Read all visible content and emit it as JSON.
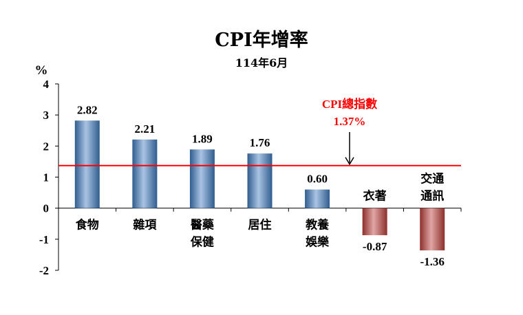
{
  "chart_data": {
    "type": "bar",
    "title": "CPI年增率",
    "subtitle": "114年6月",
    "ylabel": "%",
    "ylim": [
      -2,
      4
    ],
    "yticks": [
      "-2",
      "-1",
      "0",
      "1",
      "2",
      "3",
      "4"
    ],
    "categories": [
      [
        "食物"
      ],
      [
        "雜項"
      ],
      [
        "醫藥",
        "保健"
      ],
      [
        "居住"
      ],
      [
        "教養",
        "娛樂"
      ],
      [
        "衣著"
      ],
      [
        "交通",
        "通訊"
      ]
    ],
    "values": [
      2.82,
      2.21,
      1.89,
      1.76,
      0.6,
      -0.87,
      -1.36
    ],
    "data_labels": [
      "2.82",
      "2.21",
      "1.89",
      "1.76",
      "0.60",
      "-0.87",
      "-1.36"
    ],
    "reference_line": {
      "value": 1.37,
      "label_line1": "CPI總指數",
      "label_line2": "1.37%",
      "color": "#ff0000"
    },
    "colors": {
      "positive": "#4f81bd",
      "negative": "#c0504d"
    },
    "grid": false,
    "legend": "none"
  }
}
